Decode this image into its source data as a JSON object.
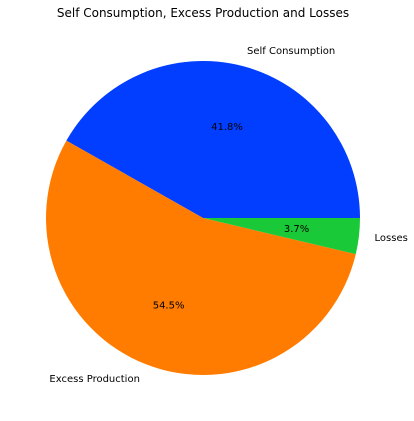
{
  "chart_data": {
    "type": "pie",
    "title": "Self Consumption, Excess Production and Losses",
    "slices": [
      {
        "label": "Self Consumption",
        "value": 41.8,
        "pct_label": "41.8%",
        "color": "#023eff"
      },
      {
        "label": "Excess Production",
        "value": 54.5,
        "pct_label": "54.5%",
        "color": "#ff7c00"
      },
      {
        "label": "Losses",
        "value": 3.7,
        "pct_label": "3.7%",
        "color": "#1ac938"
      }
    ],
    "start_angle": 0,
    "direction": "counterclockwise",
    "legend": "none"
  }
}
